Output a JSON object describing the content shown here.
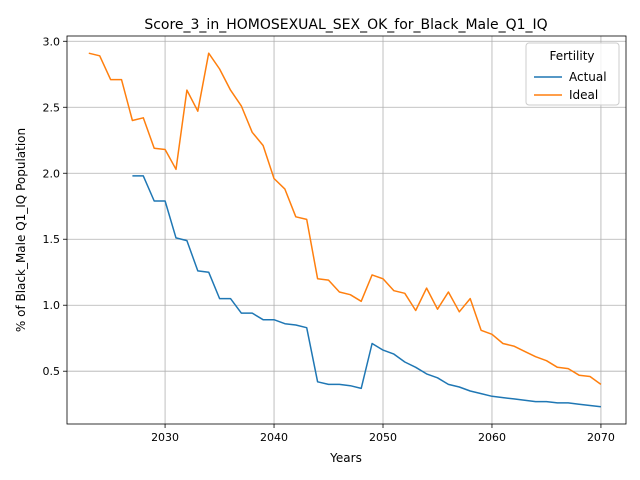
{
  "chart_data": {
    "type": "line",
    "title": "Score_3_in_HOMOSEXUAL_SEX_OK_for_Black_Male_Q1_IQ",
    "xlabel": "Years",
    "ylabel": "% of Black_Male Q1_IQ Population",
    "xlim": [
      2021,
      2072.3
    ],
    "ylim": [
      0.1,
      3.04
    ],
    "x_ticks": [
      2030,
      2040,
      2050,
      2060,
      2070
    ],
    "y_ticks": [
      0.5,
      1.0,
      1.5,
      2.0,
      2.5,
      3.0
    ],
    "x_tick_labels": [
      "2030",
      "2040",
      "2050",
      "2060",
      "2070"
    ],
    "y_tick_labels": [
      "0.5",
      "1.0",
      "1.5",
      "2.0",
      "2.5",
      "3.0"
    ],
    "grid": true,
    "legend": {
      "title": "Fertility",
      "placement": "top-right"
    },
    "series": [
      {
        "name": "Actual",
        "color": "#1f77b4",
        "x": [
          2027,
          2028,
          2029,
          2030,
          2031,
          2032,
          2033,
          2034,
          2035,
          2036,
          2037,
          2038,
          2039,
          2040,
          2041,
          2042,
          2043,
          2044,
          2045,
          2046,
          2047,
          2048,
          2049,
          2050,
          2051,
          2052,
          2053,
          2054,
          2055,
          2056,
          2057,
          2058,
          2059,
          2060,
          2061,
          2062,
          2063,
          2064,
          2065,
          2066,
          2067,
          2068,
          2069,
          2070
        ],
        "values": [
          1.98,
          1.98,
          1.79,
          1.79,
          1.51,
          1.49,
          1.26,
          1.25,
          1.05,
          1.05,
          0.94,
          0.94,
          0.89,
          0.89,
          0.86,
          0.85,
          0.83,
          0.42,
          0.4,
          0.4,
          0.39,
          0.37,
          0.71,
          0.66,
          0.63,
          0.57,
          0.53,
          0.48,
          0.45,
          0.4,
          0.38,
          0.35,
          0.33,
          0.31,
          0.3,
          0.29,
          0.28,
          0.27,
          0.27,
          0.26,
          0.26,
          0.25,
          0.24,
          0.23
        ]
      },
      {
        "name": "Ideal",
        "color": "#ff7f0e",
        "x": [
          2023,
          2024,
          2025,
          2026,
          2027,
          2028,
          2029,
          2030,
          2031,
          2032,
          2033,
          2034,
          2035,
          2036,
          2037,
          2038,
          2039,
          2040,
          2041,
          2042,
          2043,
          2044,
          2045,
          2046,
          2047,
          2048,
          2049,
          2050,
          2051,
          2052,
          2053,
          2054,
          2055,
          2056,
          2057,
          2058,
          2059,
          2060,
          2061,
          2062,
          2063,
          2064,
          2065,
          2066,
          2067,
          2068,
          2069,
          2070
        ],
        "values": [
          2.91,
          2.89,
          2.71,
          2.71,
          2.4,
          2.42,
          2.19,
          2.18,
          2.03,
          2.63,
          2.47,
          2.91,
          2.79,
          2.63,
          2.51,
          2.31,
          2.21,
          1.96,
          1.88,
          1.67,
          1.65,
          1.2,
          1.19,
          1.1,
          1.08,
          1.03,
          1.23,
          1.2,
          1.11,
          1.09,
          0.96,
          1.13,
          0.97,
          1.1,
          0.95,
          1.05,
          0.81,
          0.78,
          0.71,
          0.69,
          0.65,
          0.61,
          0.58,
          0.53,
          0.52,
          0.47,
          0.46,
          0.4
        ]
      }
    ]
  }
}
